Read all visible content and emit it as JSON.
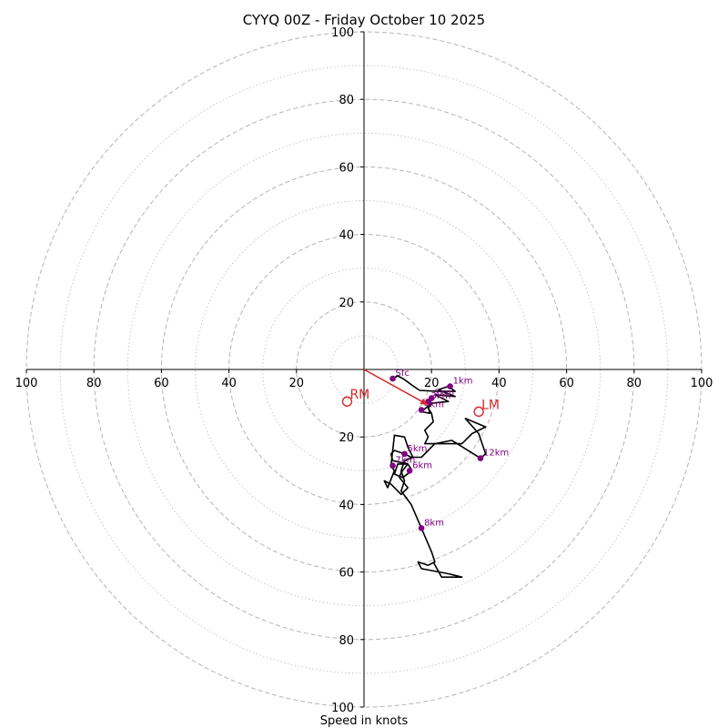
{
  "chart_data": {
    "type": "hodograph",
    "title": "CYYQ 00Z - Friday October 10 2025",
    "xlabel": "Speed in knots",
    "axis_range": [
      -100,
      100
    ],
    "ring_major": [
      20,
      40,
      60,
      80,
      100
    ],
    "ring_minor": [
      10,
      30,
      50,
      70,
      90
    ],
    "x_ticks": [
      {
        "value": -100,
        "label": "100"
      },
      {
        "value": -80,
        "label": "80"
      },
      {
        "value": -60,
        "label": "60"
      },
      {
        "value": -40,
        "label": "40"
      },
      {
        "value": -20,
        "label": "20"
      },
      {
        "value": 20,
        "label": "20"
      },
      {
        "value": 40,
        "label": "40"
      },
      {
        "value": 60,
        "label": "60"
      },
      {
        "value": 80,
        "label": "80"
      },
      {
        "value": 100,
        "label": "100"
      }
    ],
    "y_ticks": [
      {
        "value": 100,
        "label": "100"
      },
      {
        "value": 80,
        "label": "80"
      },
      {
        "value": 60,
        "label": "60"
      },
      {
        "value": 40,
        "label": "40"
      },
      {
        "value": 20,
        "label": "20"
      },
      {
        "value": -20,
        "label": "20"
      },
      {
        "value": -40,
        "label": "40"
      },
      {
        "value": -60,
        "label": "60"
      },
      {
        "value": -80,
        "label": "80"
      },
      {
        "value": -100,
        "label": "100"
      }
    ],
    "trace_color": "#000000",
    "trace": [
      [
        8.5,
        -2.7
      ],
      [
        10,
        -1.9
      ],
      [
        12,
        -3
      ],
      [
        14,
        -4.5
      ],
      [
        16.5,
        -6.2
      ],
      [
        22,
        -6.5
      ],
      [
        27,
        -6.5
      ],
      [
        25,
        -5
      ],
      [
        22,
        -6
      ],
      [
        27,
        -8
      ],
      [
        21,
        -7.5
      ],
      [
        25,
        -9.5
      ],
      [
        20,
        -10
      ],
      [
        19,
        -11
      ],
      [
        19.5,
        -13
      ],
      [
        17,
        -12.5
      ],
      [
        20,
        -10
      ],
      [
        19,
        -11.5
      ],
      [
        20,
        -13
      ],
      [
        20.5,
        -15.5
      ],
      [
        18,
        -18
      ],
      [
        19,
        -20
      ],
      [
        18,
        -22
      ],
      [
        24,
        -22
      ],
      [
        29,
        -22
      ],
      [
        32,
        -19
      ],
      [
        36,
        -17
      ],
      [
        30,
        -14.5
      ],
      [
        34,
        -19
      ],
      [
        36,
        -25
      ],
      [
        34.5,
        -26.3
      ],
      [
        26,
        -21
      ],
      [
        21,
        -22
      ],
      [
        17,
        -26
      ],
      [
        14,
        -26
      ],
      [
        12,
        -25
      ],
      [
        9,
        -24
      ],
      [
        8,
        -25
      ],
      [
        8.5,
        -27
      ],
      [
        13,
        -28
      ],
      [
        10,
        -28
      ],
      [
        9,
        -31
      ],
      [
        11.5,
        -32
      ],
      [
        13.5,
        -30.5
      ],
      [
        14,
        -29.5
      ],
      [
        13,
        -28
      ],
      [
        11,
        -30.5
      ],
      [
        10.5,
        -32
      ],
      [
        13,
        -35
      ],
      [
        11,
        -37
      ],
      [
        8,
        -34
      ],
      [
        6,
        -33
      ],
      [
        7,
        -35
      ],
      [
        9,
        -30
      ],
      [
        8,
        -28.5
      ],
      [
        9,
        -19.5
      ],
      [
        12,
        -20
      ],
      [
        13,
        -23
      ],
      [
        14.5,
        -26
      ],
      [
        12,
        -27
      ],
      [
        11,
        -30
      ],
      [
        12,
        -33
      ],
      [
        11,
        -36
      ],
      [
        14,
        -40
      ],
      [
        17,
        -47
      ],
      [
        20,
        -54
      ],
      [
        21,
        -57
      ],
      [
        19,
        -58
      ],
      [
        16,
        -57
      ],
      [
        17,
        -59
      ],
      [
        25,
        -60.5
      ],
      [
        27,
        -61
      ],
      [
        29,
        -61.5
      ],
      [
        23,
        -61.5
      ],
      [
        20.5,
        -57
      ]
    ],
    "height_markers": [
      {
        "label": "Sfc",
        "u": 8.5,
        "v": -2.7
      },
      {
        "label": "1km",
        "u": 25.5,
        "v": -5
      },
      {
        "label": "2km",
        "u": 20,
        "v": -8.5
      },
      {
        "label": "3km",
        "u": 19,
        "v": -9.5
      },
      {
        "label": "4km",
        "u": 17,
        "v": -12
      },
      {
        "label": "5km",
        "u": 12,
        "v": -25
      },
      {
        "label": "6km",
        "u": 13.5,
        "v": -30
      },
      {
        "label": "7km",
        "u": 8.5,
        "v": -28.5
      },
      {
        "label": "8km",
        "u": 17,
        "v": -47
      },
      {
        "label": "12km",
        "u": 34.5,
        "v": -26.3
      }
    ],
    "marker_color": "#800080",
    "storm_motion": {
      "color": "#d62728",
      "vector_to": [
        19,
        -10.5
      ],
      "right_mover": {
        "label": "RM",
        "u": -5,
        "v": -9.5
      },
      "left_mover": {
        "label": "LM",
        "u": 34,
        "v": -12.5
      }
    }
  }
}
